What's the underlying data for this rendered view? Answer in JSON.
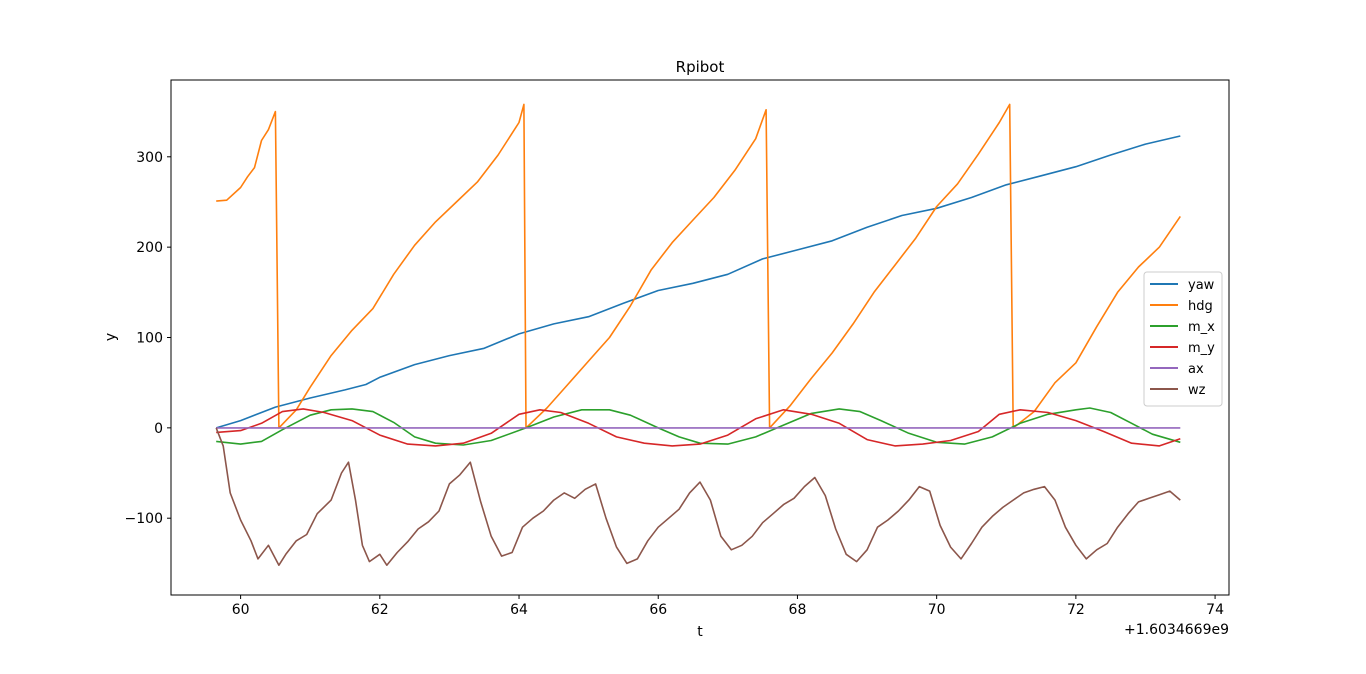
{
  "chart_data": {
    "type": "line",
    "title": "Rpibot",
    "xlabel": "t",
    "ylabel": "y",
    "x_offset_label": "+1.6034669e9",
    "xlim": [
      59.0,
      74.2
    ],
    "ylim": [
      -185,
      385
    ],
    "xticks": [
      60,
      62,
      64,
      66,
      68,
      70,
      72,
      74
    ],
    "xtick_labels": [
      "60",
      "62",
      "64",
      "66",
      "68",
      "70",
      "72",
      "74"
    ],
    "yticks": [
      -100,
      0,
      100,
      200,
      300
    ],
    "ytick_labels": [
      "−100",
      "0",
      "100",
      "200",
      "300"
    ],
    "legend_position": "center-right",
    "grid": false,
    "series": [
      {
        "name": "yaw",
        "color": "#1f77b4",
        "points": [
          [
            59.65,
            0
          ],
          [
            60.0,
            8
          ],
          [
            60.5,
            23
          ],
          [
            61.0,
            33
          ],
          [
            61.5,
            42
          ],
          [
            61.8,
            48
          ],
          [
            62.0,
            56
          ],
          [
            62.5,
            70
          ],
          [
            63.0,
            80
          ],
          [
            63.5,
            88
          ],
          [
            64.0,
            104
          ],
          [
            64.5,
            115
          ],
          [
            65.0,
            123
          ],
          [
            65.5,
            138
          ],
          [
            66.0,
            152
          ],
          [
            66.5,
            160
          ],
          [
            67.0,
            170
          ],
          [
            67.5,
            187
          ],
          [
            68.0,
            197
          ],
          [
            68.5,
            207
          ],
          [
            69.0,
            222
          ],
          [
            69.5,
            235
          ],
          [
            70.0,
            243
          ],
          [
            70.5,
            255
          ],
          [
            71.0,
            269
          ],
          [
            71.5,
            279
          ],
          [
            72.0,
            289
          ],
          [
            72.5,
            302
          ],
          [
            73.0,
            314
          ],
          [
            73.5,
            323
          ]
        ]
      },
      {
        "name": "hdg",
        "color": "#ff7f0e",
        "points": [
          [
            59.65,
            251
          ],
          [
            59.8,
            252
          ],
          [
            60.0,
            266
          ],
          [
            60.1,
            278
          ],
          [
            60.2,
            288
          ],
          [
            60.3,
            318
          ],
          [
            60.4,
            330
          ],
          [
            60.5,
            350
          ],
          [
            60.55,
            0
          ],
          [
            60.8,
            20
          ],
          [
            61.0,
            45
          ],
          [
            61.3,
            80
          ],
          [
            61.6,
            108
          ],
          [
            61.9,
            132
          ],
          [
            62.2,
            170
          ],
          [
            62.5,
            202
          ],
          [
            62.8,
            228
          ],
          [
            63.1,
            250
          ],
          [
            63.4,
            272
          ],
          [
            63.7,
            302
          ],
          [
            64.0,
            338
          ],
          [
            64.07,
            358
          ],
          [
            64.1,
            0
          ],
          [
            64.4,
            22
          ],
          [
            64.7,
            48
          ],
          [
            65.0,
            74
          ],
          [
            65.3,
            100
          ],
          [
            65.6,
            135
          ],
          [
            65.9,
            175
          ],
          [
            66.2,
            205
          ],
          [
            66.5,
            230
          ],
          [
            66.8,
            255
          ],
          [
            67.1,
            285
          ],
          [
            67.4,
            320
          ],
          [
            67.55,
            352
          ],
          [
            67.6,
            0
          ],
          [
            67.9,
            25
          ],
          [
            68.2,
            55
          ],
          [
            68.5,
            83
          ],
          [
            68.8,
            115
          ],
          [
            69.1,
            150
          ],
          [
            69.4,
            180
          ],
          [
            69.7,
            210
          ],
          [
            70.0,
            245
          ],
          [
            70.3,
            270
          ],
          [
            70.6,
            303
          ],
          [
            70.9,
            338
          ],
          [
            71.05,
            358
          ],
          [
            71.1,
            0
          ],
          [
            71.4,
            18
          ],
          [
            71.7,
            50
          ],
          [
            72.0,
            72
          ],
          [
            72.3,
            112
          ],
          [
            72.6,
            150
          ],
          [
            72.9,
            178
          ],
          [
            73.2,
            200
          ],
          [
            73.5,
            234
          ]
        ]
      },
      {
        "name": "m_x",
        "color": "#2ca02c",
        "points": [
          [
            59.65,
            -15
          ],
          [
            60.0,
            -18
          ],
          [
            60.3,
            -15
          ],
          [
            60.6,
            -2
          ],
          [
            61.0,
            14
          ],
          [
            61.3,
            20
          ],
          [
            61.6,
            21
          ],
          [
            61.9,
            18
          ],
          [
            62.2,
            6
          ],
          [
            62.5,
            -10
          ],
          [
            62.8,
            -17
          ],
          [
            63.2,
            -19
          ],
          [
            63.6,
            -14
          ],
          [
            64.1,
            0
          ],
          [
            64.5,
            12
          ],
          [
            64.9,
            20
          ],
          [
            65.3,
            20
          ],
          [
            65.6,
            14
          ],
          [
            66.0,
            0
          ],
          [
            66.3,
            -10
          ],
          [
            66.6,
            -17
          ],
          [
            67.0,
            -18
          ],
          [
            67.4,
            -10
          ],
          [
            67.8,
            3
          ],
          [
            68.2,
            16
          ],
          [
            68.6,
            21
          ],
          [
            68.9,
            18
          ],
          [
            69.2,
            8
          ],
          [
            69.6,
            -6
          ],
          [
            70.0,
            -16
          ],
          [
            70.4,
            -18
          ],
          [
            70.8,
            -10
          ],
          [
            71.2,
            5
          ],
          [
            71.6,
            15
          ],
          [
            72.0,
            20
          ],
          [
            72.2,
            22
          ],
          [
            72.5,
            17
          ],
          [
            72.8,
            5
          ],
          [
            73.1,
            -7
          ],
          [
            73.5,
            -16
          ]
        ]
      },
      {
        "name": "m_y",
        "color": "#d62728",
        "points": [
          [
            59.65,
            -5
          ],
          [
            60.0,
            -3
          ],
          [
            60.3,
            5
          ],
          [
            60.6,
            18
          ],
          [
            60.9,
            21
          ],
          [
            61.2,
            17
          ],
          [
            61.6,
            8
          ],
          [
            62.0,
            -8
          ],
          [
            62.4,
            -18
          ],
          [
            62.8,
            -20
          ],
          [
            63.2,
            -17
          ],
          [
            63.6,
            -6
          ],
          [
            64.0,
            15
          ],
          [
            64.3,
            20
          ],
          [
            64.6,
            17
          ],
          [
            65.0,
            5
          ],
          [
            65.4,
            -10
          ],
          [
            65.8,
            -17
          ],
          [
            66.2,
            -20
          ],
          [
            66.6,
            -18
          ],
          [
            67.0,
            -8
          ],
          [
            67.4,
            10
          ],
          [
            67.8,
            20
          ],
          [
            68.2,
            15
          ],
          [
            68.6,
            5
          ],
          [
            69.0,
            -13
          ],
          [
            69.4,
            -20
          ],
          [
            69.8,
            -18
          ],
          [
            70.2,
            -14
          ],
          [
            70.6,
            -4
          ],
          [
            70.9,
            15
          ],
          [
            71.2,
            20
          ],
          [
            71.6,
            17
          ],
          [
            72.0,
            8
          ],
          [
            72.4,
            -4
          ],
          [
            72.8,
            -17
          ],
          [
            73.2,
            -20
          ],
          [
            73.5,
            -12
          ]
        ]
      },
      {
        "name": "ax",
        "color": "#9467bd",
        "points": [
          [
            59.65,
            0
          ],
          [
            73.5,
            0
          ]
        ]
      },
      {
        "name": "wz",
        "color": "#8c564b",
        "points": [
          [
            59.65,
            0
          ],
          [
            59.75,
            -20
          ],
          [
            59.85,
            -72
          ],
          [
            60.0,
            -102
          ],
          [
            60.15,
            -125
          ],
          [
            60.25,
            -145
          ],
          [
            60.4,
            -130
          ],
          [
            60.55,
            -152
          ],
          [
            60.65,
            -140
          ],
          [
            60.8,
            -125
          ],
          [
            60.95,
            -118
          ],
          [
            61.1,
            -95
          ],
          [
            61.3,
            -80
          ],
          [
            61.45,
            -50
          ],
          [
            61.55,
            -38
          ],
          [
            61.65,
            -80
          ],
          [
            61.75,
            -130
          ],
          [
            61.85,
            -148
          ],
          [
            62.0,
            -140
          ],
          [
            62.1,
            -152
          ],
          [
            62.25,
            -138
          ],
          [
            62.4,
            -126
          ],
          [
            62.55,
            -112
          ],
          [
            62.7,
            -104
          ],
          [
            62.85,
            -92
          ],
          [
            63.0,
            -62
          ],
          [
            63.15,
            -52
          ],
          [
            63.3,
            -38
          ],
          [
            63.45,
            -82
          ],
          [
            63.6,
            -120
          ],
          [
            63.75,
            -142
          ],
          [
            63.9,
            -138
          ],
          [
            64.05,
            -110
          ],
          [
            64.2,
            -100
          ],
          [
            64.35,
            -92
          ],
          [
            64.5,
            -80
          ],
          [
            64.65,
            -72
          ],
          [
            64.8,
            -78
          ],
          [
            64.95,
            -68
          ],
          [
            65.1,
            -62
          ],
          [
            65.25,
            -100
          ],
          [
            65.4,
            -132
          ],
          [
            65.55,
            -150
          ],
          [
            65.7,
            -145
          ],
          [
            65.85,
            -125
          ],
          [
            66.0,
            -110
          ],
          [
            66.15,
            -100
          ],
          [
            66.3,
            -90
          ],
          [
            66.45,
            -72
          ],
          [
            66.6,
            -60
          ],
          [
            66.75,
            -80
          ],
          [
            66.9,
            -120
          ],
          [
            67.05,
            -135
          ],
          [
            67.2,
            -130
          ],
          [
            67.35,
            -120
          ],
          [
            67.5,
            -105
          ],
          [
            67.65,
            -95
          ],
          [
            67.8,
            -85
          ],
          [
            67.95,
            -78
          ],
          [
            68.1,
            -65
          ],
          [
            68.25,
            -55
          ],
          [
            68.4,
            -75
          ],
          [
            68.55,
            -112
          ],
          [
            68.7,
            -140
          ],
          [
            68.85,
            -148
          ],
          [
            69.0,
            -135
          ],
          [
            69.15,
            -110
          ],
          [
            69.3,
            -102
          ],
          [
            69.45,
            -92
          ],
          [
            69.6,
            -80
          ],
          [
            69.75,
            -65
          ],
          [
            69.9,
            -70
          ],
          [
            70.05,
            -108
          ],
          [
            70.2,
            -132
          ],
          [
            70.35,
            -145
          ],
          [
            70.5,
            -128
          ],
          [
            70.65,
            -110
          ],
          [
            70.8,
            -98
          ],
          [
            70.95,
            -88
          ],
          [
            71.1,
            -80
          ],
          [
            71.25,
            -72
          ],
          [
            71.4,
            -68
          ],
          [
            71.55,
            -65
          ],
          [
            71.7,
            -80
          ],
          [
            71.85,
            -110
          ],
          [
            72.0,
            -130
          ],
          [
            72.15,
            -145
          ],
          [
            72.3,
            -135
          ],
          [
            72.45,
            -128
          ],
          [
            72.6,
            -110
          ],
          [
            72.75,
            -95
          ],
          [
            72.9,
            -82
          ],
          [
            73.05,
            -78
          ],
          [
            73.2,
            -74
          ],
          [
            73.35,
            -70
          ],
          [
            73.5,
            -80
          ]
        ]
      }
    ]
  }
}
